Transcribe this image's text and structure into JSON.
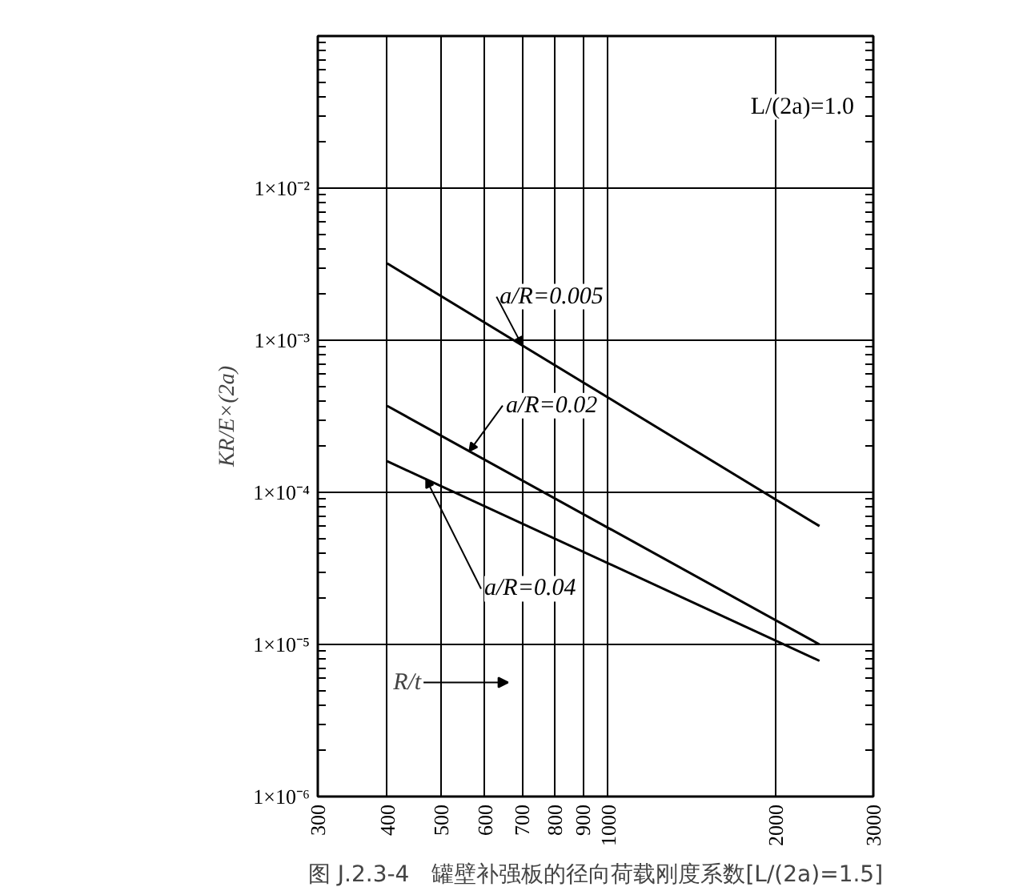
{
  "chart_data": {
    "type": "line",
    "title": "图 J.2.3-4　罐壁补强板的径向荷载刚度系数[L/(2a)=1.5]",
    "xlabel": "R/t",
    "ylabel": "KR/E×(2a)",
    "log": "xy",
    "grid": true,
    "legend": false,
    "marker": "none",
    "line_style": "solid",
    "annotations": [
      "L/(2a)=1.0"
    ],
    "x": [
      400,
      2400
    ],
    "xlim": [
      300,
      3000
    ],
    "xticks": [
      300,
      400,
      500,
      600,
      700,
      800,
      900,
      1000,
      2000,
      3000
    ],
    "ylim": [
      1e-06,
      0.1
    ],
    "yticks": [
      {
        "value": 1e-06,
        "label": "1×10⁻⁶"
      },
      {
        "value": 1e-05,
        "label": "1×10⁻⁵"
      },
      {
        "value": 0.0001,
        "label": "1×10⁻⁴"
      },
      {
        "value": 0.001,
        "label": "1×10⁻³"
      },
      {
        "value": 0.01,
        "label": "1×10⁻²"
      }
    ],
    "series": [
      {
        "name": "a/R=0.005",
        "color": "#000000",
        "values": [
          0.0032,
          6e-05
        ]
      },
      {
        "name": "a/R=0.02",
        "color": "#000000",
        "values": [
          0.00037,
          1e-05
        ]
      },
      {
        "name": "a/R=0.04",
        "color": "#000000",
        "values": [
          0.00016,
          7.8e-06
        ]
      }
    ]
  }
}
